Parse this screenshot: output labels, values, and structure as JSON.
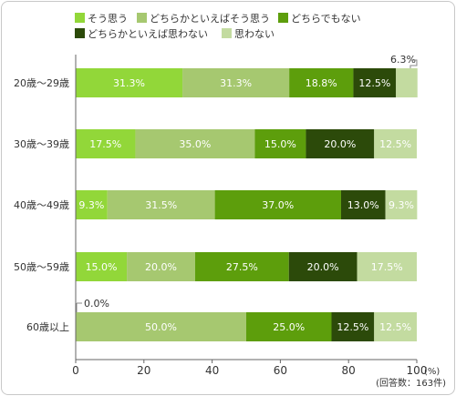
{
  "chart_data": {
    "type": "bar",
    "orientation": "horizontal",
    "stacked": true,
    "categories": [
      "20歳～29歳",
      "30歳～39歳",
      "40歳～49歳",
      "50歳～59歳",
      "60歳以上"
    ],
    "series": [
      {
        "name": "そう思う",
        "color": "#92d739",
        "values": [
          31.3,
          17.5,
          9.3,
          15.0,
          0.0
        ],
        "labels": [
          "31.3%",
          "17.5%",
          "9.3%",
          "15.0%",
          ""
        ]
      },
      {
        "name": "どちらかといえばそう思う",
        "color": "#a6c870",
        "values": [
          31.3,
          35.0,
          31.5,
          20.0,
          50.0
        ],
        "labels": [
          "31.3%",
          "35.0%",
          "31.5%",
          "20.0%",
          "50.0%"
        ]
      },
      {
        "name": "どちらでもない",
        "color": "#5d9e0c",
        "values": [
          18.8,
          15.0,
          37.0,
          27.5,
          25.0
        ],
        "labels": [
          "18.8%",
          "15.0%",
          "37.0%",
          "27.5%",
          "25.0%"
        ]
      },
      {
        "name": "どちらかといえば思わない",
        "color": "#2c4a0a",
        "values": [
          12.5,
          20.0,
          13.0,
          20.0,
          12.5
        ],
        "labels": [
          "12.5%",
          "20.0%",
          "13.0%",
          "20.0%",
          "12.5%"
        ]
      },
      {
        "name": "思わない",
        "color": "#c3dba0",
        "values": [
          6.3,
          12.5,
          9.3,
          17.5,
          12.5
        ],
        "labels": [
          "",
          "12.5%",
          "9.3%",
          "17.5%",
          "12.5%"
        ]
      }
    ],
    "annotations": [
      {
        "category_index": 0,
        "series_index": 4,
        "text": "6.3%"
      },
      {
        "category_index": 4,
        "series_index": 0,
        "text": "0.0%"
      }
    ],
    "xlim": [
      0,
      100
    ],
    "xticks": [
      "0",
      "20",
      "40",
      "60",
      "80",
      "100"
    ],
    "x_unit": "(%)",
    "note": "(回答数：163件)",
    "grid": false,
    "legend_position": "top"
  }
}
